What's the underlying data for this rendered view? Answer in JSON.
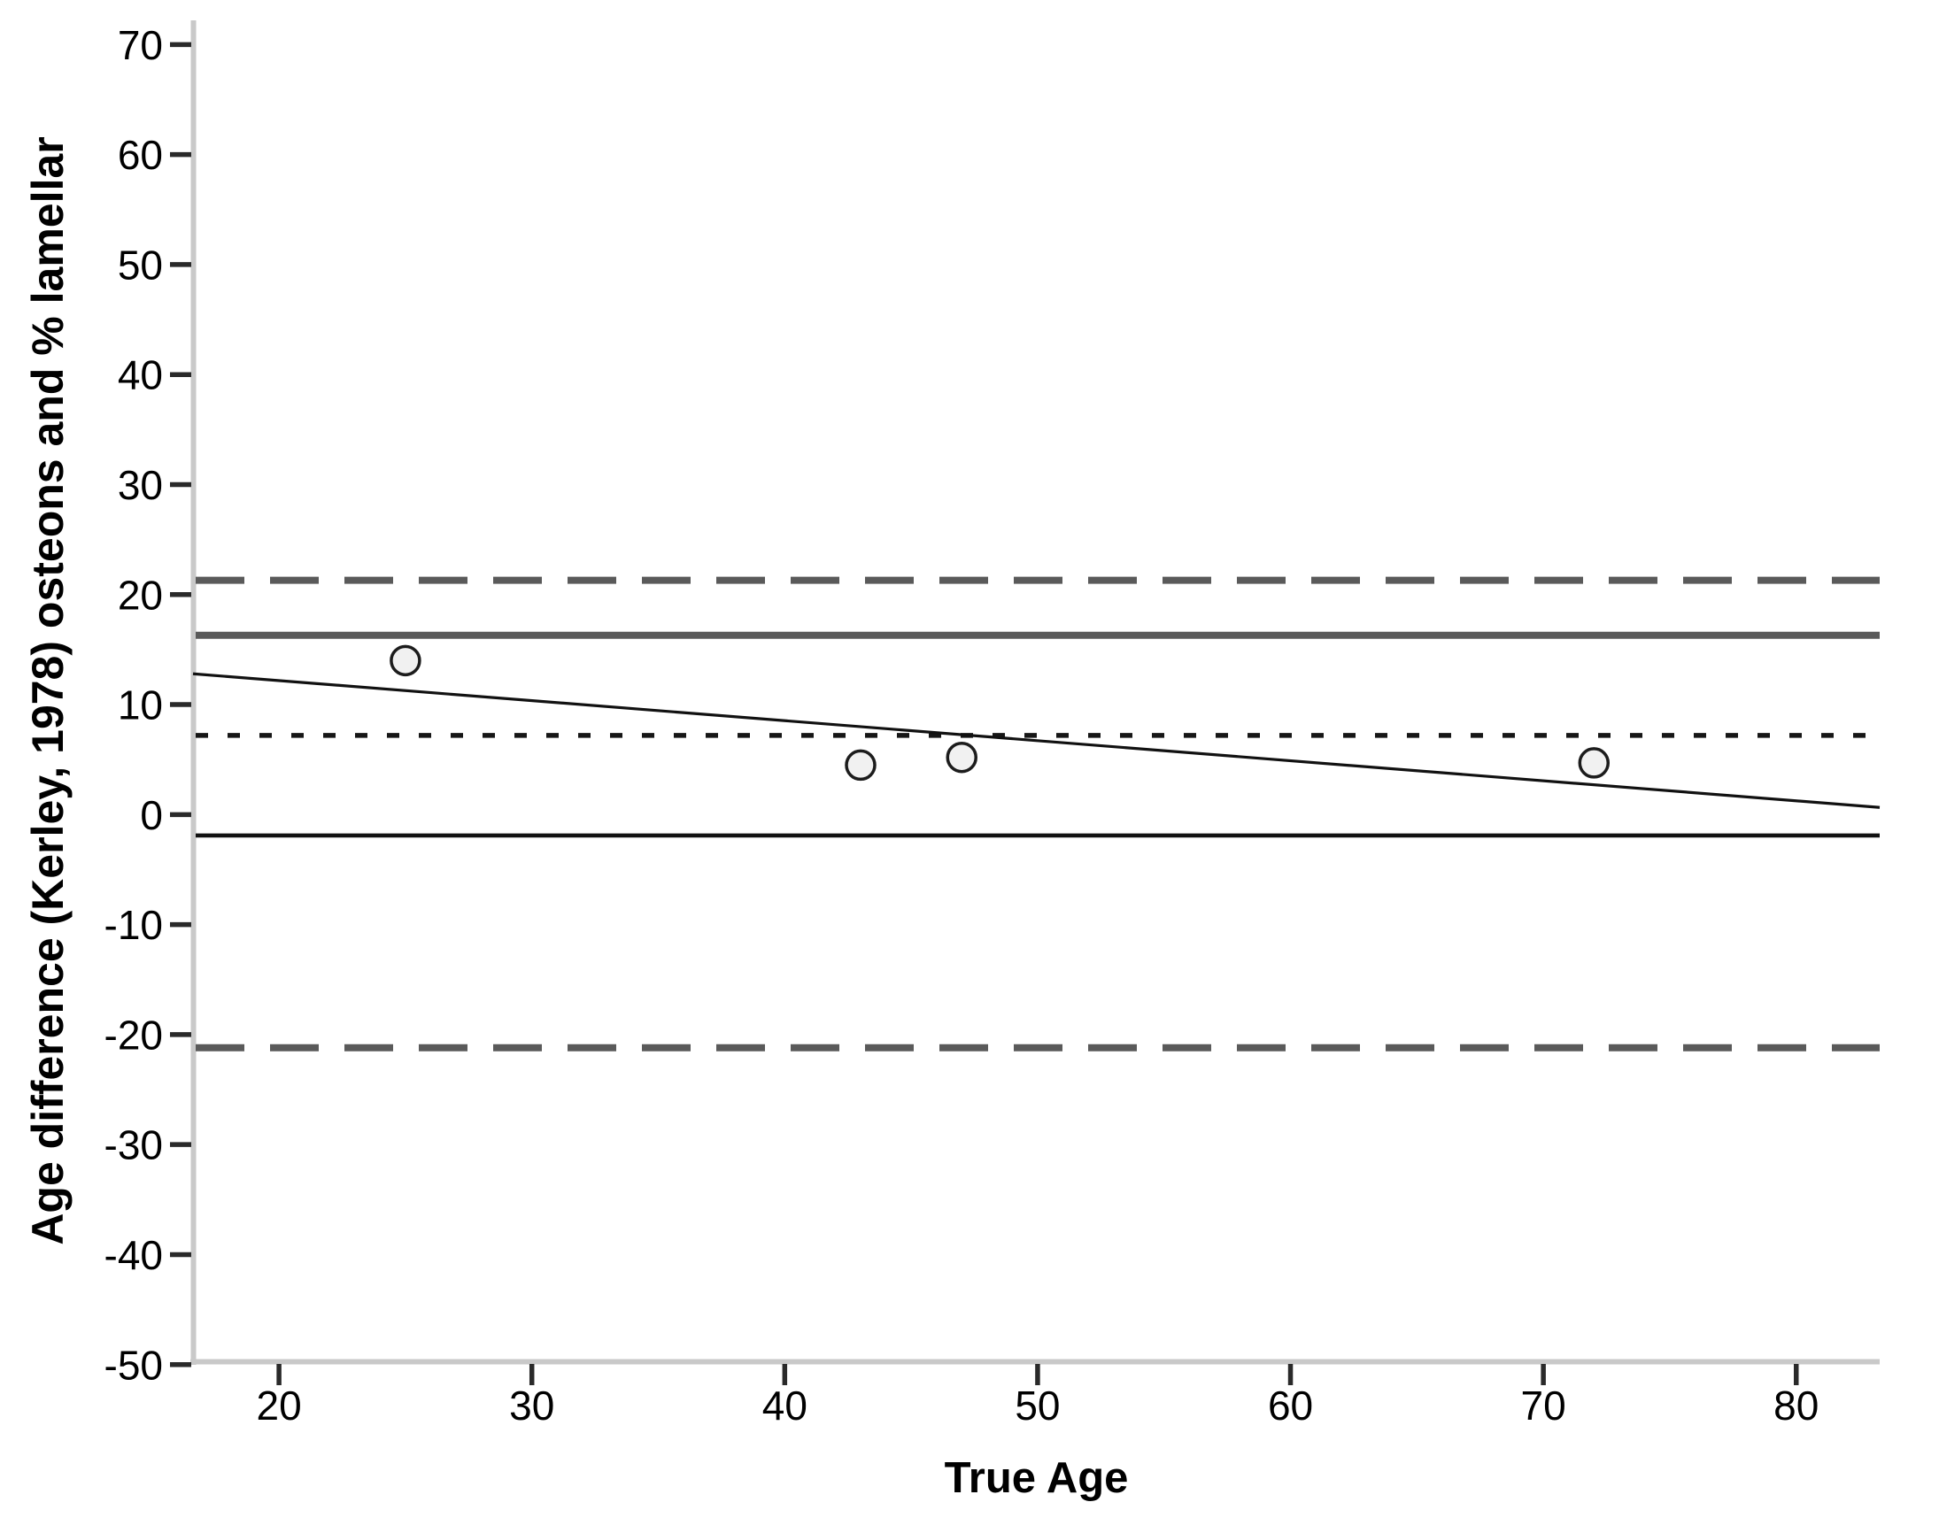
{
  "chart_data": {
    "type": "scatter",
    "title": "",
    "xlabel": "True Age",
    "ylabel": "Age difference (Kerley, 1978) osteons and % lamellar",
    "xlim": [
      16.6,
      83.3
    ],
    "ylim": [
      -49.7,
      72.2
    ],
    "x_ticks": [
      20,
      30,
      40,
      50,
      60,
      70,
      80
    ],
    "y_ticks": [
      70,
      60,
      50,
      40,
      30,
      20,
      10,
      0,
      -10,
      -20,
      -30,
      -40,
      -50
    ],
    "grid": false,
    "legend": null,
    "points": [
      {
        "x": 25,
        "y": 14.0
      },
      {
        "x": 43,
        "y": 4.5
      },
      {
        "x": 47,
        "y": 5.2
      },
      {
        "x": 72,
        "y": 4.7
      }
    ],
    "marker": {
      "shape": "circle",
      "radius": 16,
      "fill": "#f1f1f1",
      "stroke": "#1c1c1c",
      "stroke_width": 3.5
    },
    "regression_line": {
      "x1": 16.6,
      "y1": 12.8,
      "x2": 83.3,
      "y2": 0.65,
      "color": "#111111",
      "width": 3.2
    },
    "reference_lines": [
      {
        "name": "upper-limit-dashed-line",
        "value": 21.3,
        "style": "long-dash",
        "color": "#5a5a5a",
        "width": 8
      },
      {
        "name": "upper-solid-line",
        "value": 16.3,
        "style": "solid",
        "color": "#5a5a5a",
        "width": 8
      },
      {
        "name": "mean-dotted-line",
        "value": 7.2,
        "style": "dotted",
        "color": "#161616",
        "width": 5.5
      },
      {
        "name": "lower-solid-line",
        "value": -1.9,
        "style": "solid",
        "color": "#111111",
        "width": 4.6
      },
      {
        "name": "lower-limit-dashed-line",
        "value": -21.2,
        "style": "long-dash",
        "color": "#5a5a5a",
        "width": 8
      }
    ],
    "styles": {
      "axis_color": "#c9c9c9",
      "tick_color": "#2a2a2a",
      "text_color": "#000000",
      "background": "#ffffff",
      "tick_font_size": 46,
      "long_dash_pattern": "55 29",
      "dotted_pattern": "14 22"
    }
  }
}
